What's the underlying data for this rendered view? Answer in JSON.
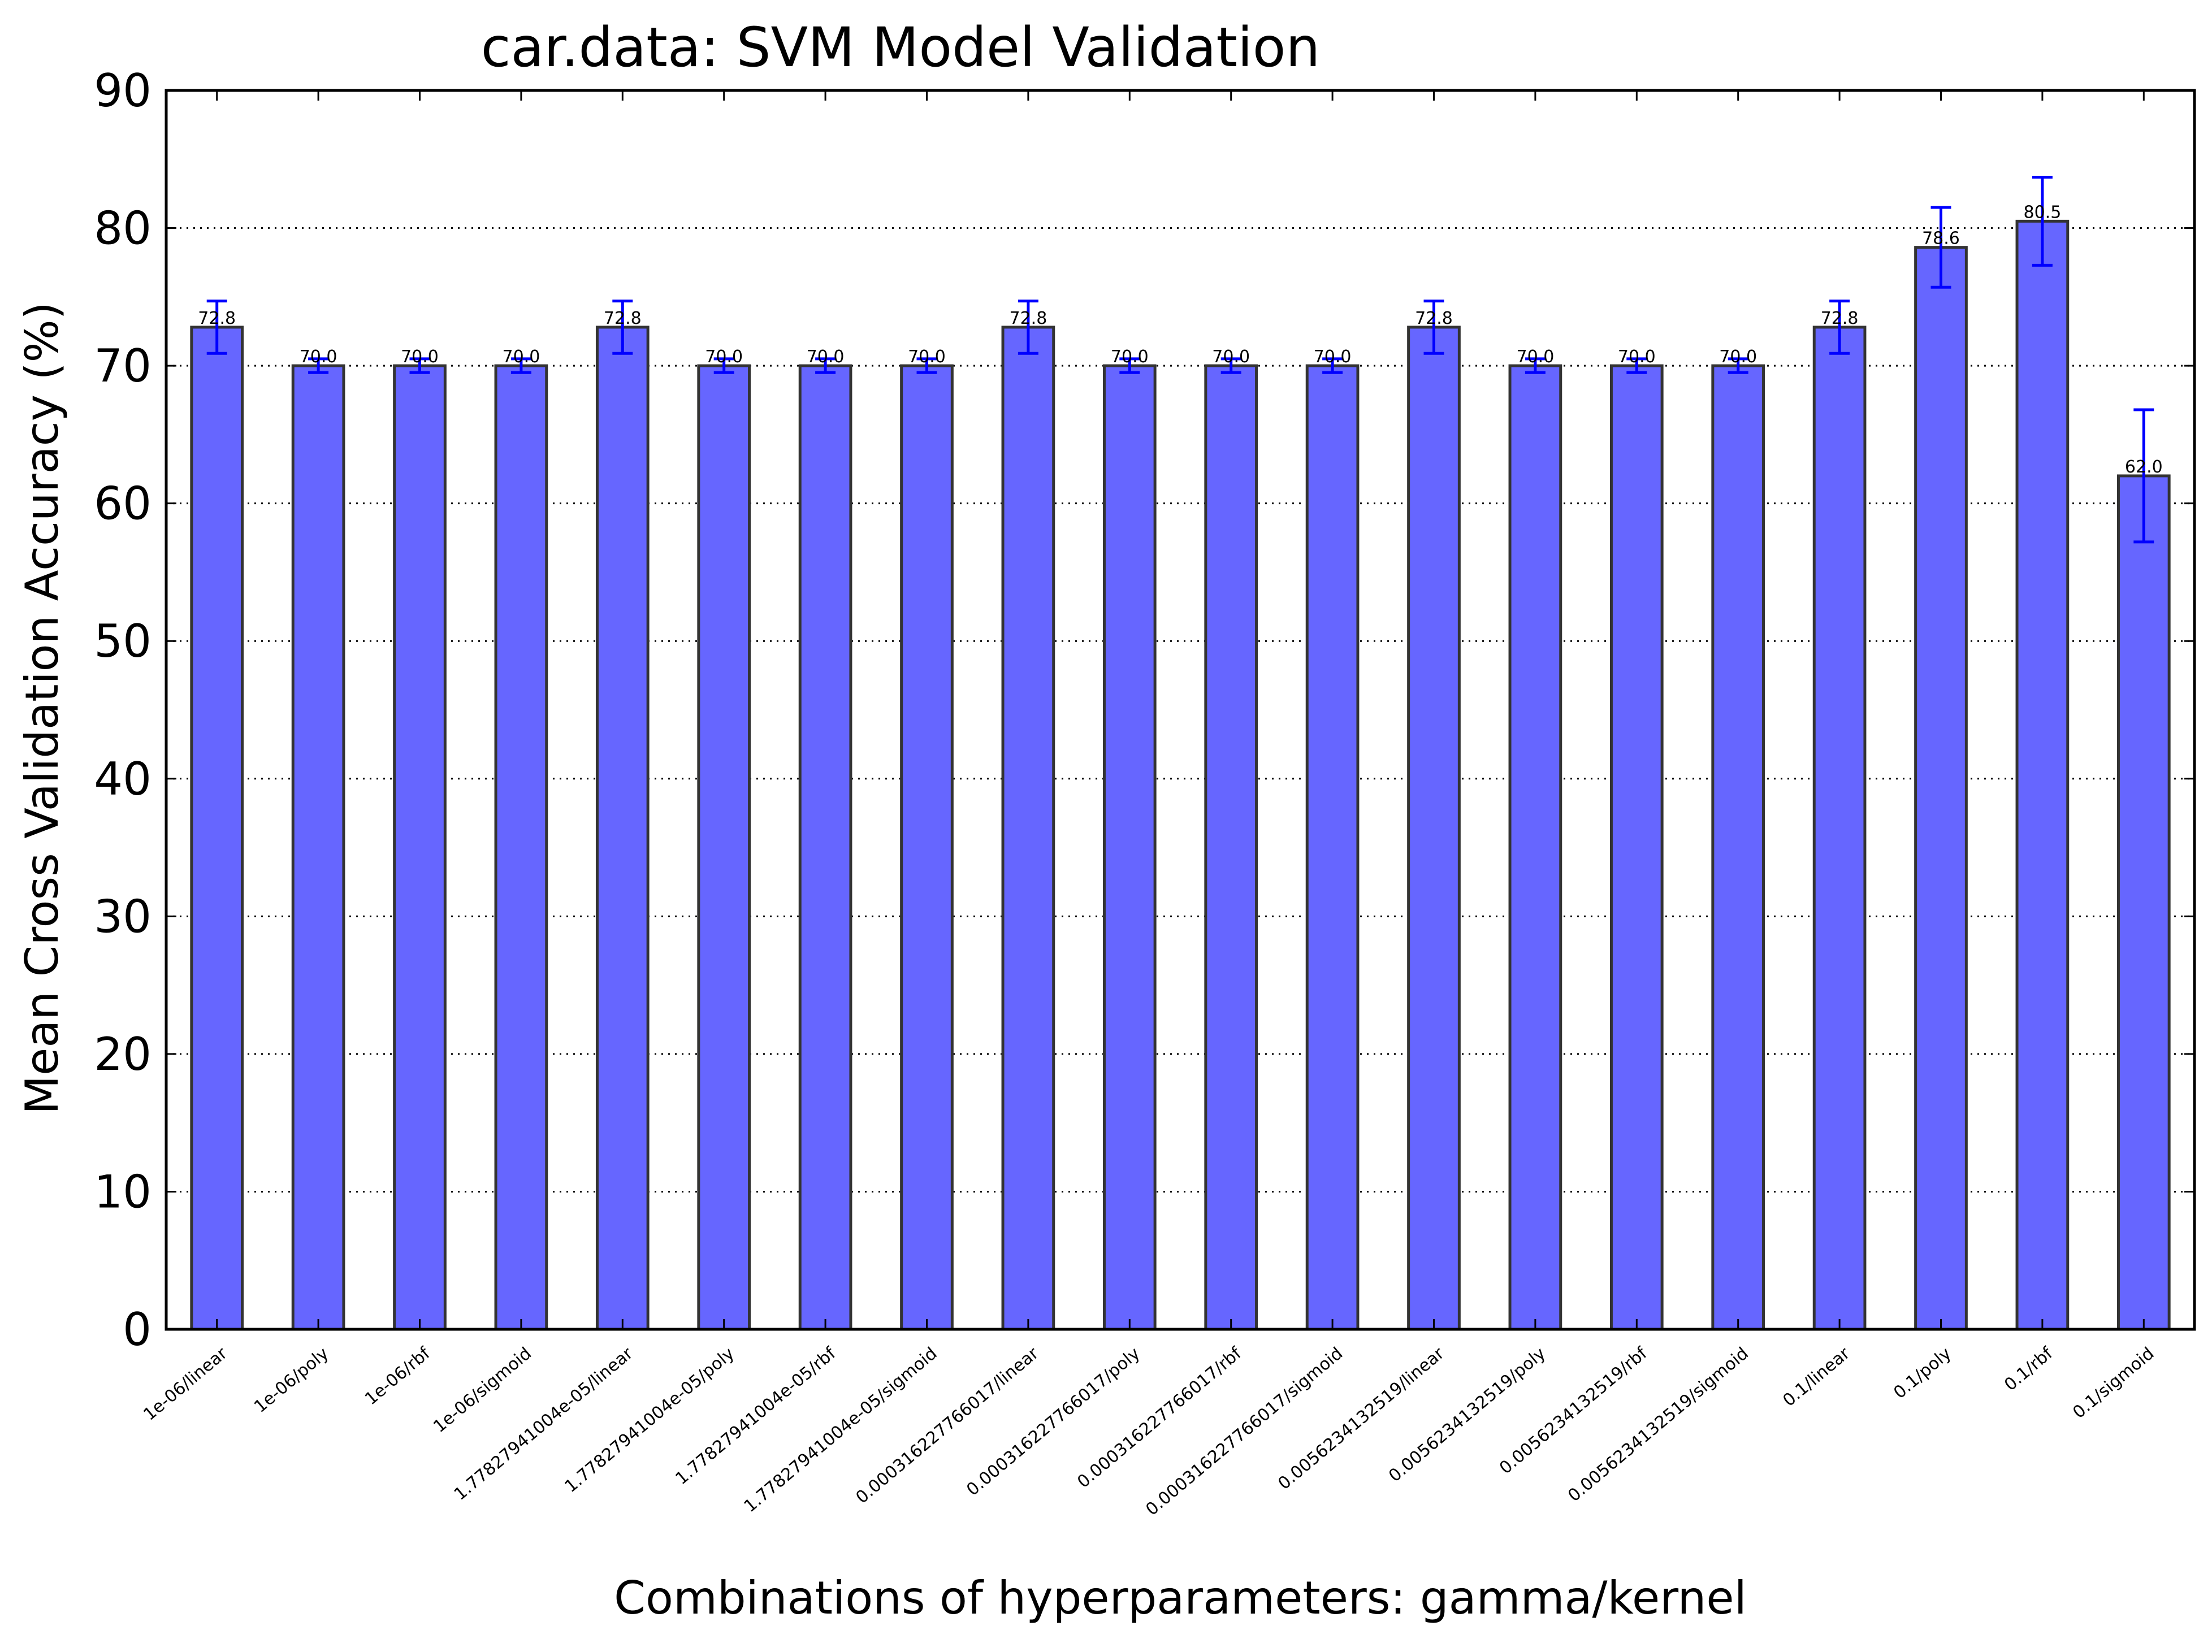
{
  "chart_data": {
    "type": "bar",
    "title": "car.data: SVM Model Validation",
    "xlabel": "Combinations of hyperparameters: gamma/kernel",
    "ylabel": "Mean Cross Validation Accuracy (%)",
    "ylim": [
      0,
      90
    ],
    "yticks": [
      0,
      10,
      20,
      30,
      40,
      50,
      60,
      70,
      80,
      90
    ],
    "grid": "horizontal dotted",
    "bar_color": "#6666ff",
    "error_color": "#0000ff",
    "categories": [
      "1e-06/linear",
      "1e-06/poly",
      "1e-06/rbf",
      "1e-06/sigmoid",
      "1.77827941004e-05/linear",
      "1.77827941004e-05/poly",
      "1.77827941004e-05/rbf",
      "1.77827941004e-05/sigmoid",
      "0.000316227766017/linear",
      "0.000316227766017/poly",
      "0.000316227766017/rbf",
      "0.000316227766017/sigmoid",
      "0.0056234132519/linear",
      "0.0056234132519/poly",
      "0.0056234132519/rbf",
      "0.0056234132519/sigmoid",
      "0.1/linear",
      "0.1/poly",
      "0.1/rbf",
      "0.1/sigmoid"
    ],
    "values": [
      72.8,
      70.0,
      70.0,
      70.0,
      72.8,
      70.0,
      70.0,
      70.0,
      72.8,
      70.0,
      70.0,
      70.0,
      72.8,
      70.0,
      70.0,
      70.0,
      72.8,
      78.6,
      80.5,
      62.0
    ],
    "errors": [
      1.9,
      0.5,
      0.5,
      0.5,
      1.9,
      0.5,
      0.5,
      0.5,
      1.9,
      0.5,
      0.5,
      0.5,
      1.9,
      0.5,
      0.5,
      0.5,
      1.9,
      2.9,
      3.2,
      4.8
    ],
    "value_labels": [
      "72.8",
      "70.0",
      "70.0",
      "70.0",
      "72.8",
      "70.0",
      "70.0",
      "70.0",
      "72.8",
      "70.0",
      "70.0",
      "70.0",
      "72.8",
      "70.0",
      "70.0",
      "70.0",
      "72.8",
      "78.6",
      "80.5",
      "62.0"
    ]
  }
}
